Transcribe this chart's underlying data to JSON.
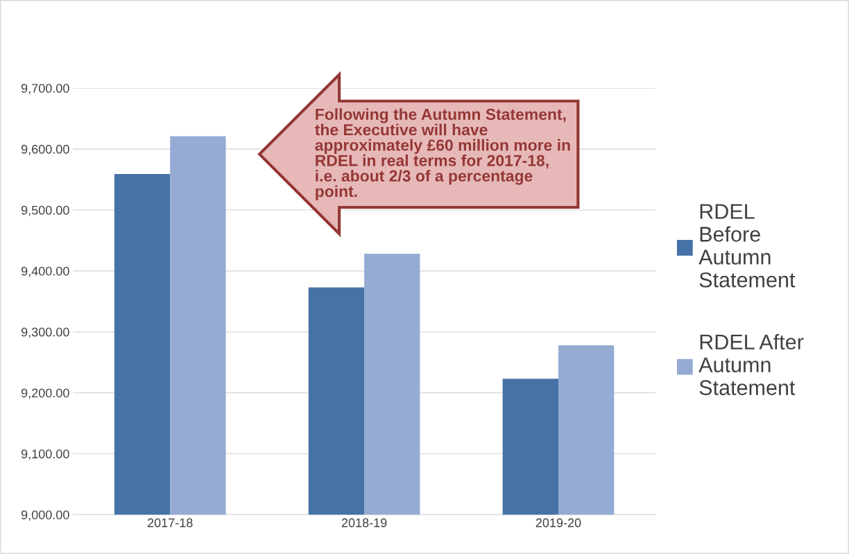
{
  "chart_data": {
    "type": "bar",
    "categories": [
      "2017-18",
      "2018-19",
      "2019-20"
    ],
    "series": [
      {
        "name": "RDEL Before Autumn Statement",
        "color": "#4572a7",
        "values": [
          9559,
          9373,
          9223
        ]
      },
      {
        "name": "RDEL After Autumn Statement",
        "color": "#95abd3",
        "values": [
          9621,
          9428,
          9278
        ]
      }
    ],
    "ylim": [
      9000,
      9700
    ],
    "yticks": [
      {
        "value": 9000,
        "label": "9,000.00"
      },
      {
        "value": 9100,
        "label": "9,100.00"
      },
      {
        "value": 9200,
        "label": "9,200.00"
      },
      {
        "value": 9300,
        "label": "9,300.00"
      },
      {
        "value": 9400,
        "label": "9,400.00"
      },
      {
        "value": 9500,
        "label": "9,500.00"
      },
      {
        "value": 9600,
        "label": "9,600.00"
      },
      {
        "value": 9700,
        "label": "9,700.00"
      }
    ],
    "grid": "y",
    "legend": "right",
    "annotations": [
      "Following the Autumn Statement, the Executive will have approximately £60 million more in RDEL in real terms for 2017-18, i.e. about 2/3 of a percentage point."
    ]
  }
}
